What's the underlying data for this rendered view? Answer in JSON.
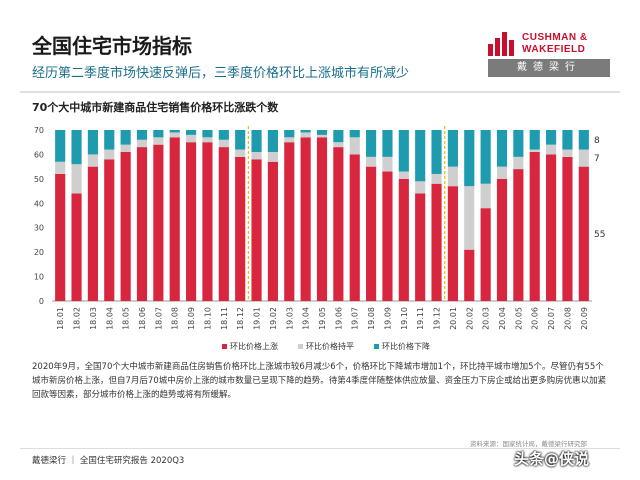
{
  "header": {
    "title": "全国住宅市场指标",
    "subtitle": "经历第二季度市场快速反弹后，三季度价格环比上涨城市有所减少"
  },
  "logo": {
    "line1": "CUSHMAN &",
    "line2": "WAKEFIELD",
    "cn": "戴德梁行"
  },
  "colors": {
    "up": "#d7263d",
    "flat": "#cfcfcf",
    "down": "#1f9bb0",
    "accent": "#c8102e",
    "divider_dash": "#f2b705"
  },
  "chart_data": {
    "type": "bar",
    "stacked": true,
    "title": "70个大中城市新建商品住宅销售价格环比涨跌个数",
    "categories": [
      "18.01",
      "18.02",
      "18.03",
      "18.04",
      "18.05",
      "18.06",
      "18.07",
      "18.08",
      "18.09",
      "18.10",
      "18.11",
      "18.12",
      "19.01",
      "19.02",
      "19.03",
      "19.04",
      "19.05",
      "19.06",
      "19.07",
      "19.08",
      "19.09",
      "19.10",
      "19.11",
      "19.12",
      "20.01",
      "20.02",
      "20.03",
      "20.04",
      "20.05",
      "20.06",
      "20.07",
      "20.08",
      "20.09"
    ],
    "series": [
      {
        "name": "环比价格上涨",
        "values": [
          52,
          44,
          55,
          58,
          61,
          63,
          64,
          67,
          65,
          65,
          63,
          59,
          58,
          57,
          65,
          67,
          67,
          63,
          60,
          55,
          53,
          50,
          44,
          48,
          47,
          21,
          38,
          50,
          54,
          61,
          60,
          59,
          55
        ]
      },
      {
        "name": "环比价格持平",
        "values": [
          5,
          12,
          5,
          4,
          3,
          3,
          3,
          2,
          3,
          2,
          3,
          3,
          3,
          4,
          2,
          2,
          1,
          2,
          7,
          4,
          6,
          3,
          5,
          4,
          8,
          26,
          10,
          5,
          5,
          1,
          4,
          3,
          7
        ]
      },
      {
        "name": "环比价格下降",
        "values": [
          13,
          14,
          10,
          8,
          6,
          4,
          3,
          1,
          2,
          3,
          4,
          8,
          9,
          9,
          3,
          1,
          2,
          5,
          3,
          11,
          11,
          17,
          21,
          18,
          15,
          23,
          22,
          15,
          11,
          8,
          6,
          8,
          8
        ]
      }
    ],
    "ylim": [
      0,
      70
    ],
    "yticks": [
      0,
      10,
      20,
      30,
      40,
      50,
      60,
      70
    ],
    "dividers_after": [
      "18.12",
      "19.12"
    ],
    "end_labels": [
      "8",
      "7",
      "55"
    ],
    "legend_position": "bottom"
  },
  "paragraph": "2020年9月，全国70个大中城市新建商品住房销售价格环比上涨城市较6月减少6个，价格环比下降城市增加1个，环比持平城市增加5个。尽管仍有55个城市新房价格上涨，但自7月后70城中房价上涨的城市数量已呈现下降的趋势。待第4季度伴随整体供应放量、资金压力下房企或给出更多购房优惠以加紧回款等因素，部分城市价格上涨的趋势或将有所缓解。",
  "source": "资料来源：国家统计局，戴德梁行研究部",
  "footer": "戴德梁行 ｜ 全国住宅研究报告 2020Q3",
  "watermark": "头条@侠说"
}
